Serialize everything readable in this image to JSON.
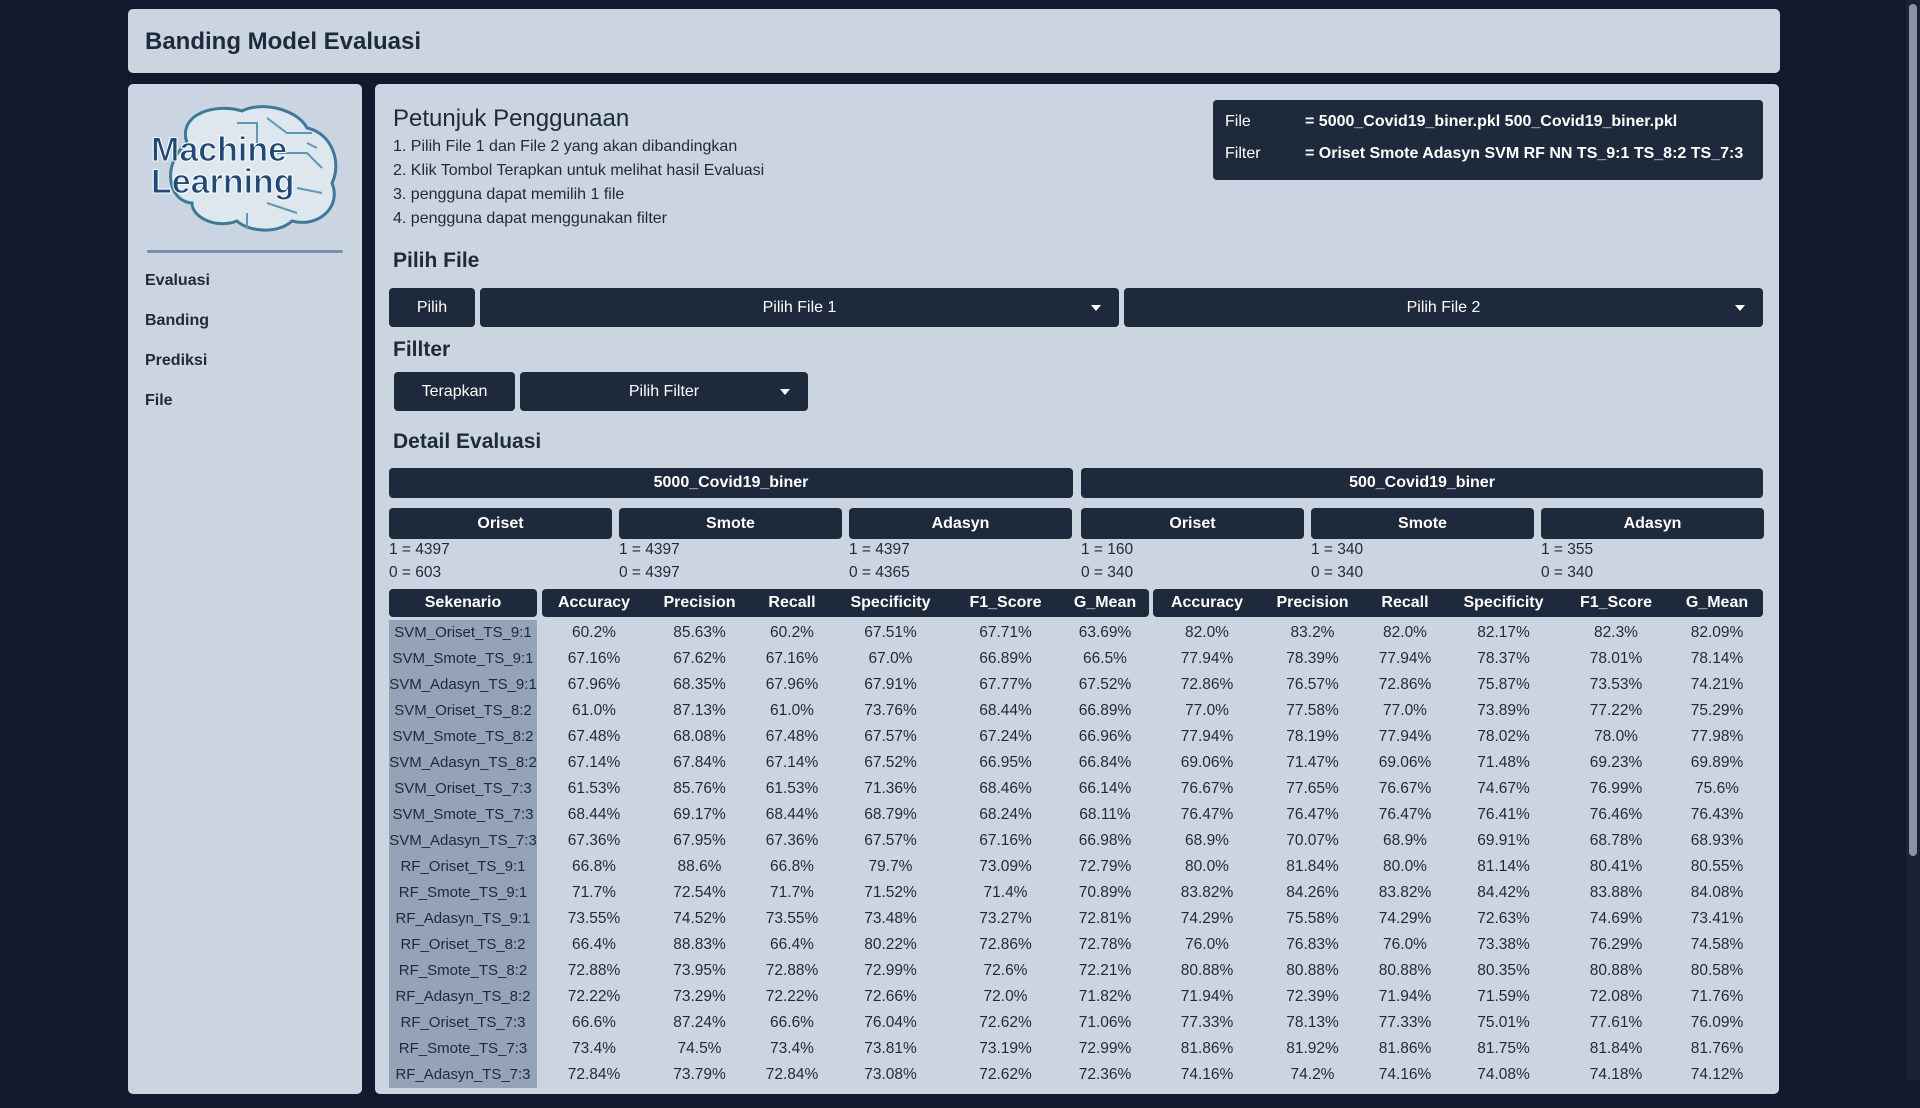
{
  "header": {
    "title": "Banding Model Evaluasi"
  },
  "sidebar": {
    "logo_text": [
      "Machine",
      "Learning"
    ],
    "menu": [
      "Evaluasi",
      "Banding",
      "Prediksi",
      "File"
    ]
  },
  "instructions": {
    "title": "Petunjuk Penggunaan",
    "steps": [
      "1. Pilih File 1 dan File 2 yang akan dibandingkan",
      "2. Klik Tombol Terapkan untuk melihat hasil Evaluasi",
      "3. pengguna dapat memilih 1 file",
      "4. pengguna dapat menggunakan filter"
    ]
  },
  "info": {
    "rows": [
      [
        "File",
        "= 5000_Covid19_biner.pkl 500_Covid19_biner.pkl"
      ],
      [
        "Filter",
        "= Oriset Smote Adasyn SVM RF NN TS_9:1 TS_8:2 TS_7:3"
      ]
    ]
  },
  "file_section": {
    "title": "Pilih File",
    "button": "Pilih",
    "dropdowns": [
      "Pilih File 1",
      "Pilih File 2"
    ]
  },
  "filter_section": {
    "title": "Fillter",
    "button": "Terapkan",
    "dropdown": "Pilih Filter"
  },
  "detail": {
    "title": "Detail Evaluasi",
    "files": [
      {
        "name": "5000_Covid19_biner",
        "methods": [
          {
            "name": "Oriset",
            "counts": [
              "1 = 4397",
              "0 = 603"
            ]
          },
          {
            "name": "Smote",
            "counts": [
              "1 = 4397",
              "0 = 4397"
            ]
          },
          {
            "name": "Adasyn",
            "counts": [
              "1 = 4397",
              "0 = 4365"
            ]
          }
        ]
      },
      {
        "name": "500_Covid19_biner",
        "methods": [
          {
            "name": "Oriset",
            "counts": [
              "1 = 160",
              "0 = 340"
            ]
          },
          {
            "name": "Smote",
            "counts": [
              "1 = 340",
              "0 = 340"
            ]
          },
          {
            "name": "Adasyn",
            "counts": [
              "1 = 355",
              "0 = 340"
            ]
          }
        ]
      }
    ],
    "table": {
      "columns": [
        "Sekenario",
        "Accuracy",
        "Precision",
        "Recall",
        "Specificity",
        "F1_Score",
        "G_Mean",
        "Accuracy",
        "Precision",
        "Recall",
        "Specificity",
        "F1_Score",
        "G_Mean"
      ],
      "rows": [
        [
          "SVM_Oriset_TS_9:1",
          "60.2%",
          "85.63%",
          "60.2%",
          "67.51%",
          "67.71%",
          "63.69%",
          "82.0%",
          "83.2%",
          "82.0%",
          "82.17%",
          "82.3%",
          "82.09%"
        ],
        [
          "SVM_Smote_TS_9:1",
          "67.16%",
          "67.62%",
          "67.16%",
          "67.0%",
          "66.89%",
          "66.5%",
          "77.94%",
          "78.39%",
          "77.94%",
          "78.37%",
          "78.01%",
          "78.14%"
        ],
        [
          "SVM_Adasyn_TS_9:1",
          "67.96%",
          "68.35%",
          "67.96%",
          "67.91%",
          "67.77%",
          "67.52%",
          "72.86%",
          "76.57%",
          "72.86%",
          "75.87%",
          "73.53%",
          "74.21%"
        ],
        [
          "SVM_Oriset_TS_8:2",
          "61.0%",
          "87.13%",
          "61.0%",
          "73.76%",
          "68.44%",
          "66.89%",
          "77.0%",
          "77.58%",
          "77.0%",
          "73.89%",
          "77.22%",
          "75.29%"
        ],
        [
          "SVM_Smote_TS_8:2",
          "67.48%",
          "68.08%",
          "67.48%",
          "67.57%",
          "67.24%",
          "66.96%",
          "77.94%",
          "78.19%",
          "77.94%",
          "78.02%",
          "78.0%",
          "77.98%"
        ],
        [
          "SVM_Adasyn_TS_8:2",
          "67.14%",
          "67.84%",
          "67.14%",
          "67.52%",
          "66.95%",
          "66.84%",
          "69.06%",
          "71.47%",
          "69.06%",
          "71.48%",
          "69.23%",
          "69.89%"
        ],
        [
          "SVM_Oriset_TS_7:3",
          "61.53%",
          "85.76%",
          "61.53%",
          "71.36%",
          "68.46%",
          "66.14%",
          "76.67%",
          "77.65%",
          "76.67%",
          "74.67%",
          "76.99%",
          "75.6%"
        ],
        [
          "SVM_Smote_TS_7:3",
          "68.44%",
          "69.17%",
          "68.44%",
          "68.79%",
          "68.24%",
          "68.11%",
          "76.47%",
          "76.47%",
          "76.47%",
          "76.41%",
          "76.46%",
          "76.43%"
        ],
        [
          "SVM_Adasyn_TS_7:3",
          "67.36%",
          "67.95%",
          "67.36%",
          "67.57%",
          "67.16%",
          "66.98%",
          "68.9%",
          "70.07%",
          "68.9%",
          "69.91%",
          "68.78%",
          "68.93%"
        ],
        [
          "RF_Oriset_TS_9:1",
          "66.8%",
          "88.6%",
          "66.8%",
          "79.7%",
          "73.09%",
          "72.79%",
          "80.0%",
          "81.84%",
          "80.0%",
          "81.14%",
          "80.41%",
          "80.55%"
        ],
        [
          "RF_Smote_TS_9:1",
          "71.7%",
          "72.54%",
          "71.7%",
          "71.52%",
          "71.4%",
          "70.89%",
          "83.82%",
          "84.26%",
          "83.82%",
          "84.42%",
          "83.88%",
          "84.08%"
        ],
        [
          "RF_Adasyn_TS_9:1",
          "73.55%",
          "74.52%",
          "73.55%",
          "73.48%",
          "73.27%",
          "72.81%",
          "74.29%",
          "75.58%",
          "74.29%",
          "72.63%",
          "74.69%",
          "73.41%"
        ],
        [
          "RF_Oriset_TS_8:2",
          "66.4%",
          "88.83%",
          "66.4%",
          "80.22%",
          "72.86%",
          "72.78%",
          "76.0%",
          "76.83%",
          "76.0%",
          "73.38%",
          "76.29%",
          "74.58%"
        ],
        [
          "RF_Smote_TS_8:2",
          "72.88%",
          "73.95%",
          "72.88%",
          "72.99%",
          "72.6%",
          "72.21%",
          "80.88%",
          "80.88%",
          "80.88%",
          "80.35%",
          "80.88%",
          "80.58%"
        ],
        [
          "RF_Adasyn_TS_8:2",
          "72.22%",
          "73.29%",
          "72.22%",
          "72.66%",
          "72.0%",
          "71.82%",
          "71.94%",
          "72.39%",
          "71.94%",
          "71.59%",
          "72.08%",
          "71.76%"
        ],
        [
          "RF_Oriset_TS_7:3",
          "66.6%",
          "87.24%",
          "66.6%",
          "76.04%",
          "72.62%",
          "71.06%",
          "77.33%",
          "78.13%",
          "77.33%",
          "75.01%",
          "77.61%",
          "76.09%"
        ],
        [
          "RF_Smote_TS_7:3",
          "73.4%",
          "74.5%",
          "73.4%",
          "73.81%",
          "73.19%",
          "72.99%",
          "81.86%",
          "81.92%",
          "81.86%",
          "81.75%",
          "81.84%",
          "81.76%"
        ],
        [
          "RF_Adasyn_TS_7:3",
          "72.84%",
          "73.79%",
          "72.84%",
          "73.08%",
          "72.62%",
          "72.36%",
          "74.16%",
          "74.2%",
          "74.16%",
          "74.08%",
          "74.18%",
          "74.12%"
        ]
      ]
    }
  }
}
